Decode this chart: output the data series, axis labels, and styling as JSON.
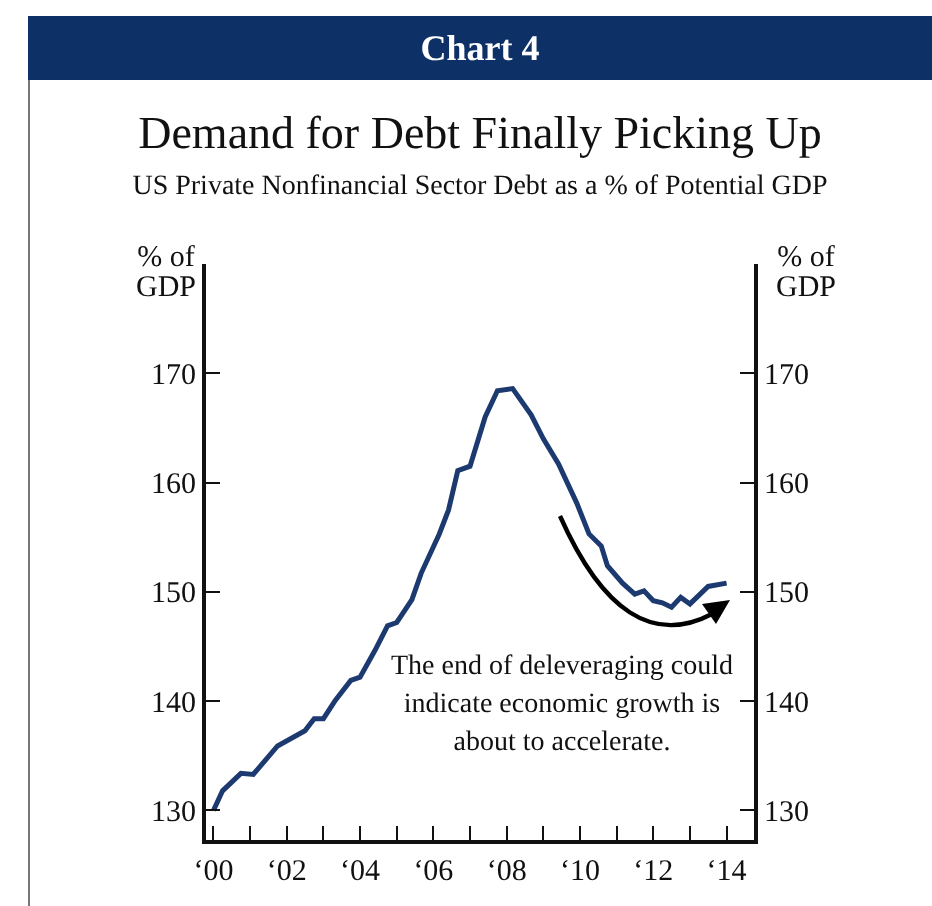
{
  "chart_data": {
    "type": "line",
    "title": "Demand for Debt Finally Picking Up",
    "subtitle": "US Private Nonfinancial Sector Debt as a % of Potential GDP",
    "ylabel": "% of GDP",
    "y2label": "% of GDP",
    "annotations": [
      "Chart 4",
      "The end of deleveraging could indicate economic growth is about to accelerate."
    ],
    "x": [
      "2000-01",
      "2000-04",
      "2000-10",
      "2001-02",
      "2001-10",
      "2002-07",
      "2002-10",
      "2003-01",
      "2003-05",
      "2003-10",
      "2004-01",
      "2004-06",
      "2004-10",
      "2005-01",
      "2005-06",
      "2005-09",
      "2006-03",
      "2006-06",
      "2006-09",
      "2007-01",
      "2007-06",
      "2007-10",
      "2008-03",
      "2008-09",
      "2009-01",
      "2009-06",
      "2009-12",
      "2010-04",
      "2010-08",
      "2010-10",
      "2011-03",
      "2011-07",
      "2011-10",
      "2012-01",
      "2012-04",
      "2012-07",
      "2012-10",
      "2013-01",
      "2013-07",
      "2014-01"
    ],
    "series": [
      {
        "color": "#1c3a70",
        "values": [
          130,
          131.8,
          133.4,
          133.3,
          135.9,
          137.3,
          138.4,
          138.4,
          140.1,
          141.9,
          142.2,
          144.7,
          146.9,
          147.2,
          149.3,
          151.7,
          155.3,
          157.5,
          161.1,
          161.5,
          166.0,
          168.4,
          168.6,
          166.2,
          164.0,
          161.7,
          158.1,
          155.3,
          154.2,
          152.4,
          150.8,
          149.8,
          150.1,
          149.2,
          149.0,
          148.6,
          149.5,
          148.9,
          150.5,
          150.8
        ]
      }
    ],
    "xlim": [
      "1999-10-19",
      "2014-10-01"
    ],
    "xticks": [
      {
        "value": "2000",
        "label": "‘00"
      },
      {
        "value": "2001",
        "label": null
      },
      {
        "value": "2002",
        "label": "‘02"
      },
      {
        "value": "2003",
        "label": null
      },
      {
        "value": "2004",
        "label": "‘04"
      },
      {
        "value": "2005",
        "label": null
      },
      {
        "value": "2006",
        "label": "‘06"
      },
      {
        "value": "2007",
        "label": null
      },
      {
        "value": "2008",
        "label": "‘08"
      },
      {
        "value": "2009",
        "label": null
      },
      {
        "value": "2010",
        "label": "‘10"
      },
      {
        "value": "2011",
        "label": null
      },
      {
        "value": "2012",
        "label": "‘12"
      },
      {
        "value": "2013",
        "label": null
      },
      {
        "value": "2014",
        "label": "‘14"
      }
    ],
    "ylim": [
      127.3,
      180
    ],
    "yticks": [
      130,
      140,
      150,
      160,
      170
    ],
    "y2lim": [
      127.3,
      180
    ],
    "y2ticks": [
      130,
      140,
      150,
      160,
      170
    ],
    "grid": false,
    "marker": "none",
    "line_style": "solid"
  }
}
